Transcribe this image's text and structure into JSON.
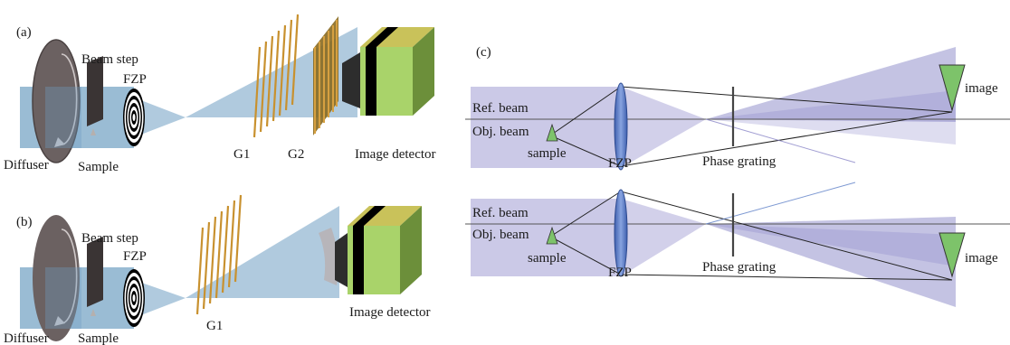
{
  "panel_a": {
    "tag": "(a)",
    "beam_step": "Beam step",
    "fzp": "FZP",
    "diffuser": "Diffuser",
    "sample": "Sample",
    "g1": "G1",
    "g2": "G2",
    "detector": "Image detector"
  },
  "panel_b": {
    "tag": "(b)",
    "beam_step": "Beam step",
    "fzp": "FZP",
    "diffuser": "Diffuser",
    "sample": "Sample",
    "g1": "G1",
    "detector": "Image detector"
  },
  "panel_c": {
    "tag": "(c)",
    "top": {
      "ref_beam": "Ref. beam",
      "obj_beam": "Obj. beam",
      "sample": "sample",
      "fzp": "FZP",
      "grating": "Phase grating",
      "image": "image"
    },
    "bottom": {
      "ref_beam": "Ref. beam",
      "obj_beam": "Obj. beam",
      "sample": "sample",
      "fzp": "FZP",
      "grating": "Phase grating",
      "image": "image"
    }
  },
  "colors": {
    "beam_blue": "#6f9fc2",
    "beam_purple": "#7d79c2",
    "grating_gold": "#c8912f",
    "detector_green": "#a9d36a",
    "disk_gray": "#6b6161",
    "sample_green": "#7dc36a",
    "lens_blue": "#5e80c8"
  }
}
